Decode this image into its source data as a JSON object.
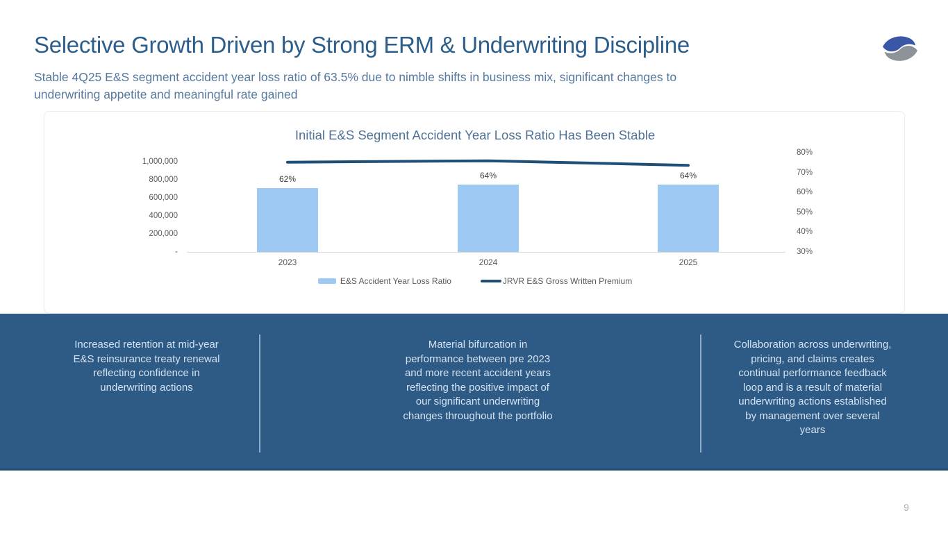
{
  "slide": {
    "title": "Selective Growth Driven by Strong ERM & Underwriting Discipline",
    "subtitle": "Stable 4Q25 E&S segment accident year loss ratio of 63.5% due to nimble shifts in business mix, significant changes to\nunderwriting appetite and meaningful rate gained",
    "logo_icon": "two-crescent-s-logo",
    "page_number": "9"
  },
  "colors": {
    "title_blue": "#2C5E8C",
    "subtitle_blue": "#56799F",
    "bar_fill": "#9DC9F2",
    "line_navy": "#1F4E79",
    "band_blue": "#2E5B86",
    "logo_blue": "#3A57A5",
    "logo_gray": "#8C9399"
  },
  "key_points": [
    "Increased retention at mid-year\nE&S reinsurance treaty renewal\nreflecting confidence in\nunderwriting actions",
    "Material bifurcation in\nperformance between pre 2023\nand more recent accident years\nreflecting the positive impact of\nour significant underwriting\nchanges throughout the portfolio",
    "Collaboration across underwriting,\npricing, and claims creates\ncontinual performance feedback\nloop and is a result of material\nunderwriting actions established\nby management over several\nyears"
  ],
  "chart_data": {
    "type": "bar",
    "title": "Initial E&S Segment Accident Year Loss Ratio Has Been Stable",
    "categories": [
      "2023",
      "2024",
      "2025"
    ],
    "series": [
      {
        "name": "E&S Accident Year Loss Ratio",
        "type": "bar",
        "axis": "right",
        "values_pct": [
          62,
          64,
          64
        ],
        "labels": [
          "62%",
          "64%",
          "64%"
        ]
      },
      {
        "name": "JRVR E&S Gross Written Premium",
        "type": "line",
        "axis": "left",
        "values": [
          995000,
          1010000,
          960000
        ]
      }
    ],
    "left_axis": {
      "ticks": [
        "1,000,000",
        "800,000",
        "600,000",
        "400,000",
        "200,000",
        "-"
      ],
      "range": [
        0,
        1000000
      ]
    },
    "right_axis": {
      "ticks": [
        "80%",
        "70%",
        "60%",
        "50%",
        "40%",
        "30%"
      ],
      "range": [
        30,
        80
      ]
    },
    "legend_position": "bottom",
    "grid": false
  }
}
